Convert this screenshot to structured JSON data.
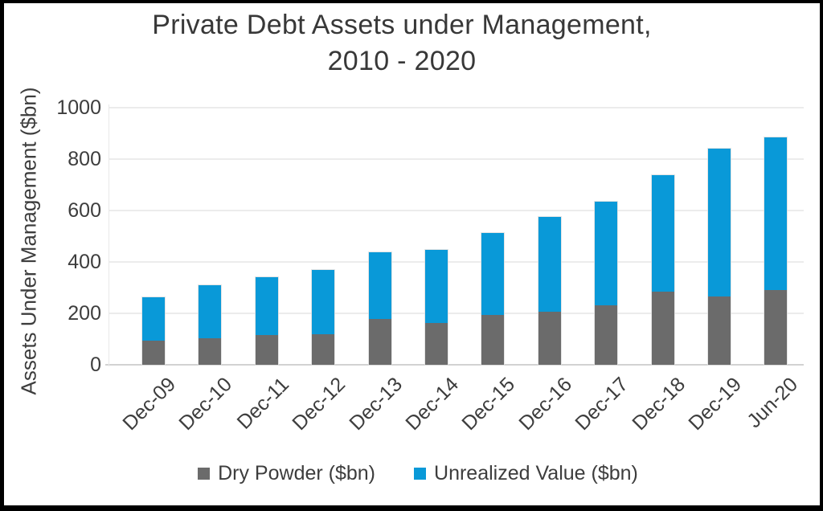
{
  "title": {
    "line1": "Private Debt Assets under Management,",
    "line2": "2010 - 2020"
  },
  "y_axis": {
    "title": "Assets Under Management ($bn)",
    "tick_labels": [
      "0",
      "200",
      "400",
      "600",
      "800",
      "1000"
    ]
  },
  "legend": {
    "items": [
      {
        "label": "Dry Powder ($bn)",
        "color": "#6B6B6B"
      },
      {
        "label": "Unrealized Value ($bn)",
        "color": "#0999D8"
      }
    ]
  },
  "chart_data": {
    "type": "bar",
    "stacked": true,
    "title": "Private Debt Assets under Management, 2010 - 2020",
    "categories": [
      "Dec-09",
      "Dec-10",
      "Dec-11",
      "Dec-12",
      "Dec-13",
      "Dec-14",
      "Dec-15",
      "Dec-16",
      "Dec-17",
      "Dec-18",
      "Dec-19",
      "Jun-20"
    ],
    "series": [
      {
        "name": "Dry Powder ($bn)",
        "color": "#6B6B6B",
        "values": [
          95,
          104,
          115,
          120,
          179,
          161,
          194,
          205,
          231,
          284,
          266,
          292
        ]
      },
      {
        "name": "Unrealized Value ($bn)",
        "color": "#0999D8",
        "values": [
          167,
          206,
          226,
          250,
          259,
          285,
          319,
          370,
          402,
          452,
          574,
          591
        ]
      }
    ],
    "totals": [
      262,
      310,
      341,
      370,
      438,
      446,
      513,
      575,
      633,
      736,
      840,
      883
    ],
    "xlabel": "",
    "ylabel": "Assets Under Management ($bn)",
    "ylim": [
      0,
      1000
    ],
    "y_ticks": [
      0,
      200,
      400,
      600,
      800,
      1000
    ],
    "grid": "horizontal",
    "legend_position": "bottom"
  },
  "colors": {
    "dry_powder": "#6B6B6B",
    "unrealized_value": "#0999D8",
    "gridline": "#ECECEC",
    "axis_line": "#D2D2D2",
    "text": "#3D3D3D",
    "frame_border": "#000000"
  }
}
